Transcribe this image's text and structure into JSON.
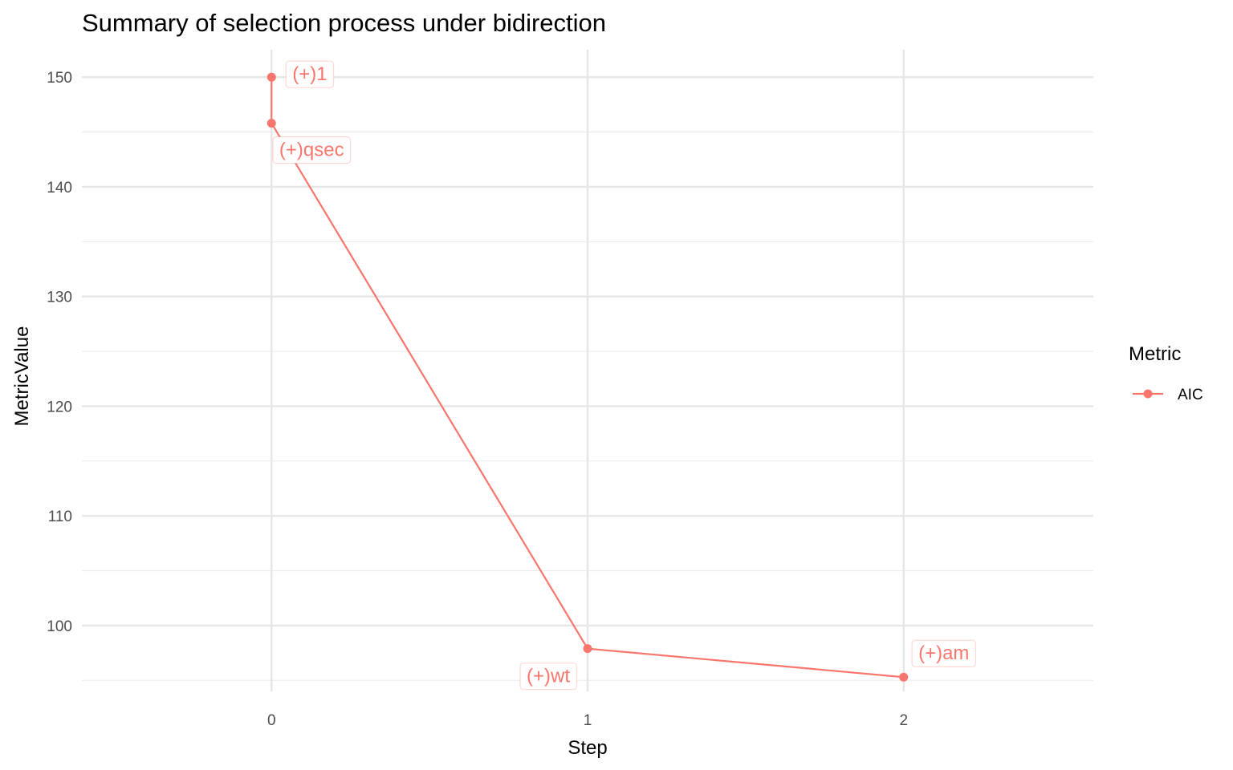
{
  "chart_data": {
    "type": "line",
    "title": "Summary of selection process under bidirection",
    "xlabel": "Step",
    "ylabel": "MetricValue",
    "xlim": [
      -0.6,
      2.6
    ],
    "ylim": [
      94.0,
      152.5
    ],
    "x_ticks": [
      0,
      1,
      2
    ],
    "y_ticks": [
      100,
      110,
      120,
      130,
      140,
      150
    ],
    "grid": true,
    "legend": {
      "title": "Metric",
      "position": "right"
    },
    "series": [
      {
        "name": "AIC",
        "color": "#F8766D",
        "points": [
          {
            "x": 0,
            "y": 150.0,
            "label": "(+)1"
          },
          {
            "x": 0,
            "y": 145.8,
            "label": "(+)qsec"
          },
          {
            "x": 1,
            "y": 97.9,
            "label": "(+)wt"
          },
          {
            "x": 2,
            "y": 95.3,
            "label": "(+)am"
          }
        ]
      }
    ]
  }
}
